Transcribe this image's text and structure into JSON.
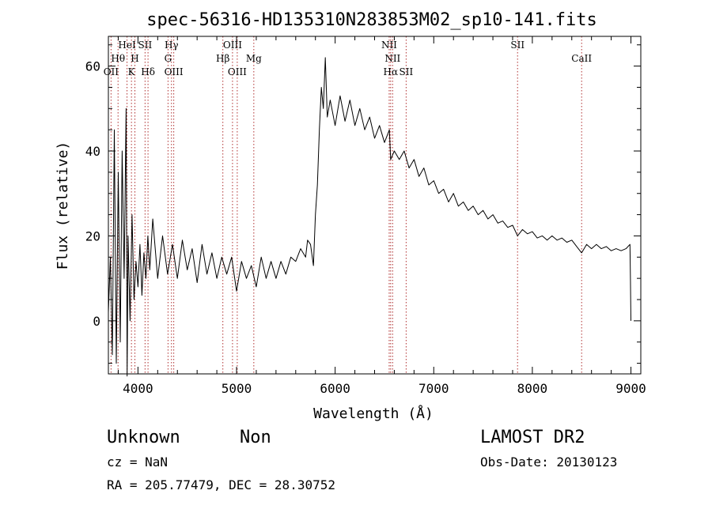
{
  "chart_data": {
    "type": "line",
    "title": "spec-56316-HD135310N283853M02_sp10-141.fits",
    "xlabel": "Wavelength (Å)",
    "ylabel": "Flux (relative)",
    "xlim": [
      3700,
      9100
    ],
    "ylim": [
      -12.5,
      67.0
    ],
    "xticks": [
      4000,
      5000,
      6000,
      7000,
      8000,
      9000
    ],
    "yticks": [
      0,
      20,
      40,
      60
    ],
    "grid": false,
    "series": [
      {
        "points": [
          [
            3700,
            2
          ],
          [
            3720,
            15
          ],
          [
            3740,
            -8
          ],
          [
            3760,
            45
          ],
          [
            3780,
            -10
          ],
          [
            3800,
            35
          ],
          [
            3820,
            -5
          ],
          [
            3840,
            40
          ],
          [
            3860,
            10
          ],
          [
            3880,
            50
          ],
          [
            3890,
            -13
          ],
          [
            3900,
            20
          ],
          [
            3920,
            0
          ],
          [
            3940,
            25
          ],
          [
            3960,
            5
          ],
          [
            3980,
            14
          ],
          [
            4000,
            8
          ],
          [
            4020,
            18
          ],
          [
            4040,
            6
          ],
          [
            4060,
            16
          ],
          [
            4080,
            10
          ],
          [
            4100,
            20
          ],
          [
            4120,
            12
          ],
          [
            4150,
            24
          ],
          [
            4200,
            10
          ],
          [
            4250,
            20
          ],
          [
            4300,
            11
          ],
          [
            4350,
            18
          ],
          [
            4400,
            10
          ],
          [
            4450,
            19
          ],
          [
            4500,
            12
          ],
          [
            4550,
            17
          ],
          [
            4600,
            9
          ],
          [
            4650,
            18
          ],
          [
            4700,
            11
          ],
          [
            4750,
            16
          ],
          [
            4800,
            10
          ],
          [
            4850,
            15
          ],
          [
            4900,
            11
          ],
          [
            4950,
            15
          ],
          [
            5000,
            7
          ],
          [
            5050,
            14
          ],
          [
            5100,
            10
          ],
          [
            5150,
            13
          ],
          [
            5200,
            8
          ],
          [
            5250,
            15
          ],
          [
            5300,
            10
          ],
          [
            5350,
            14
          ],
          [
            5400,
            10
          ],
          [
            5450,
            14
          ],
          [
            5500,
            11
          ],
          [
            5550,
            15
          ],
          [
            5600,
            14
          ],
          [
            5650,
            17
          ],
          [
            5700,
            15
          ],
          [
            5720,
            19
          ],
          [
            5750,
            18
          ],
          [
            5780,
            13
          ],
          [
            5800,
            25
          ],
          [
            5820,
            32
          ],
          [
            5840,
            45
          ],
          [
            5860,
            55
          ],
          [
            5880,
            50
          ],
          [
            5900,
            62
          ],
          [
            5920,
            48
          ],
          [
            5950,
            52
          ],
          [
            6000,
            46
          ],
          [
            6050,
            53
          ],
          [
            6100,
            47
          ],
          [
            6150,
            52
          ],
          [
            6200,
            46
          ],
          [
            6250,
            50
          ],
          [
            6300,
            45
          ],
          [
            6350,
            48
          ],
          [
            6400,
            43
          ],
          [
            6450,
            46
          ],
          [
            6500,
            42
          ],
          [
            6550,
            45
          ],
          [
            6563,
            38
          ],
          [
            6600,
            40
          ],
          [
            6650,
            38
          ],
          [
            6700,
            40
          ],
          [
            6750,
            36
          ],
          [
            6800,
            38
          ],
          [
            6850,
            34
          ],
          [
            6900,
            36
          ],
          [
            6950,
            32
          ],
          [
            7000,
            33
          ],
          [
            7050,
            30
          ],
          [
            7100,
            31
          ],
          [
            7150,
            28
          ],
          [
            7200,
            30
          ],
          [
            7250,
            27
          ],
          [
            7300,
            28
          ],
          [
            7350,
            26
          ],
          [
            7400,
            27
          ],
          [
            7450,
            25
          ],
          [
            7500,
            26
          ],
          [
            7550,
            24
          ],
          [
            7600,
            25
          ],
          [
            7650,
            23
          ],
          [
            7700,
            23.5
          ],
          [
            7750,
            22
          ],
          [
            7800,
            22.5
          ],
          [
            7850,
            20
          ],
          [
            7900,
            21.5
          ],
          [
            7950,
            20.5
          ],
          [
            8000,
            21
          ],
          [
            8050,
            19.5
          ],
          [
            8100,
            20
          ],
          [
            8150,
            19
          ],
          [
            8200,
            20
          ],
          [
            8250,
            19
          ],
          [
            8300,
            19.5
          ],
          [
            8350,
            18.5
          ],
          [
            8400,
            19
          ],
          [
            8450,
            17.5
          ],
          [
            8500,
            16
          ],
          [
            8550,
            18
          ],
          [
            8600,
            17
          ],
          [
            8650,
            18
          ],
          [
            8700,
            17
          ],
          [
            8750,
            17.5
          ],
          [
            8800,
            16.5
          ],
          [
            8850,
            17
          ],
          [
            8900,
            16.5
          ],
          [
            8950,
            17
          ],
          [
            8990,
            18
          ],
          [
            8995,
            10
          ],
          [
            9000,
            0
          ]
        ]
      }
    ],
    "line_markers": [
      {
        "label": "OII",
        "wavelength": 3727,
        "row": 3
      },
      {
        "label": "Hθ",
        "wavelength": 3798,
        "row": 2
      },
      {
        "label": "HeI",
        "wavelength": 3889,
        "row": 1
      },
      {
        "label": "K",
        "wavelength": 3934,
        "row": 3
      },
      {
        "label": "H",
        "wavelength": 3969,
        "row": 2
      },
      {
        "label": "SII",
        "wavelength": 4072,
        "row": 1
      },
      {
        "label": "Hδ",
        "wavelength": 4102,
        "row": 3
      },
      {
        "label": "Hγ",
        "wavelength": 4340,
        "row": 1
      },
      {
        "label": "G",
        "wavelength": 4305,
        "row": 2
      },
      {
        "label": "OIII",
        "wavelength": 4363,
        "row": 3
      },
      {
        "label": "Hβ",
        "wavelength": 4861,
        "row": 2
      },
      {
        "label": "OIII",
        "wavelength": 4959,
        "row": 1
      },
      {
        "label": "OIII",
        "wavelength": 5007,
        "row": 3
      },
      {
        "label": "Mg",
        "wavelength": 5175,
        "row": 2
      },
      {
        "label": "NII",
        "wavelength": 6548,
        "row": 1
      },
      {
        "label": "NII",
        "wavelength": 6583,
        "row": 2
      },
      {
        "label": "Hα",
        "wavelength": 6563,
        "row": 3
      },
      {
        "label": "SII",
        "wavelength": 6720,
        "row": 3
      },
      {
        "label": "SII",
        "wavelength": 7850,
        "row": 1
      },
      {
        "label": "CaII",
        "wavelength": 8500,
        "row": 2
      }
    ]
  },
  "footer": {
    "classification": "Unknown",
    "subclass": "Non",
    "redshift": "cz = NaN",
    "coordinates": "RA = 205.77479, DEC =  28.30752",
    "survey": "LAMOST DR2",
    "obs_date": "Obs-Date: 20130123"
  },
  "colors": {
    "line": "#000000",
    "marker": "#b03030",
    "background": "#ffffff"
  }
}
